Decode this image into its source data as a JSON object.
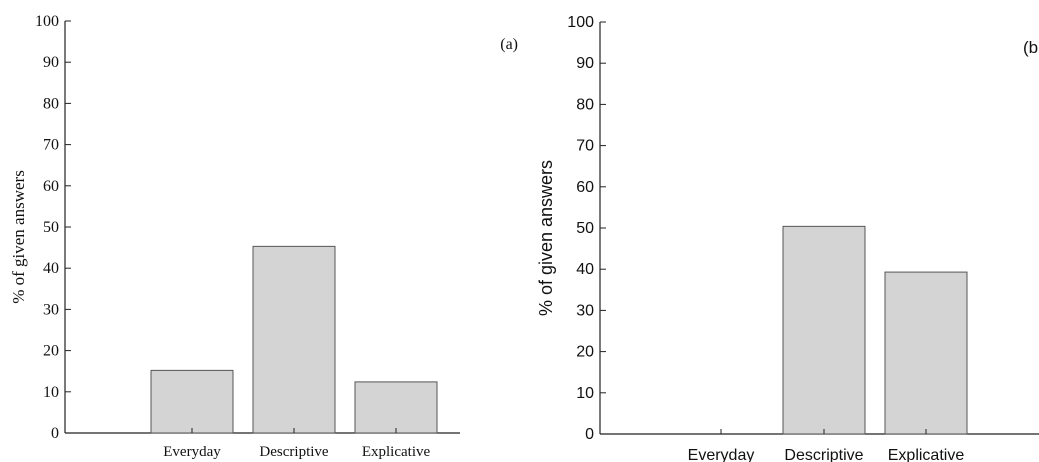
{
  "colors": {
    "bar_fill": "#d4d4d4",
    "bar_stroke": "#555555",
    "axis": "#222222",
    "text": "#111111"
  },
  "chart_data": [
    {
      "type": "bar",
      "panel_label": "(a)",
      "categories": [
        "Everyday",
        "Descriptive",
        "Explicative"
      ],
      "values": [
        15.2,
        45.3,
        12.4
      ],
      "ylabel": "% of given answers",
      "ylim": [
        0,
        100
      ],
      "yticks": [
        0,
        10,
        20,
        30,
        40,
        50,
        60,
        70,
        80,
        90,
        100
      ],
      "grid": false
    },
    {
      "type": "bar",
      "panel_label": "(b",
      "categories": [
        "Everyday",
        "Descriptive",
        "Explicative"
      ],
      "values": [
        0,
        50.4,
        39.3
      ],
      "ylabel": "% of given answers",
      "ylim": [
        0,
        100
      ],
      "yticks": [
        0,
        10,
        20,
        30,
        40,
        50,
        60,
        70,
        80,
        90,
        100
      ],
      "grid": false
    }
  ]
}
